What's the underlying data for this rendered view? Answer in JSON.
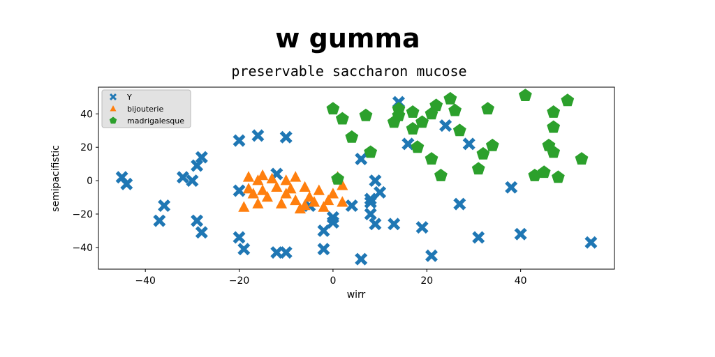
{
  "chart_data": {
    "type": "scatter",
    "title": "w gumma",
    "subtitle": "preservable saccharon mucose",
    "xlabel": "wirr",
    "ylabel": "semipacifistic",
    "xlim": [
      -50,
      60
    ],
    "ylim": [
      -53,
      56
    ],
    "xticks": [
      -40,
      -20,
      0,
      20,
      40
    ],
    "yticks": [
      -40,
      -20,
      0,
      20,
      40
    ],
    "tick_labels_x": [
      "−40",
      "−20",
      "0",
      "20",
      "40"
    ],
    "tick_labels_y": [
      "−40",
      "−20",
      "0",
      "20",
      "40"
    ],
    "grid": false,
    "legend_position": "top-left",
    "series": [
      {
        "name": "Y",
        "color": "#1f77b4",
        "marker": "x",
        "points": [
          [
            -45,
            2
          ],
          [
            -44,
            -2
          ],
          [
            -36,
            -15
          ],
          [
            -37,
            -24
          ],
          [
            -32,
            2
          ],
          [
            -30,
            0
          ],
          [
            -29,
            9
          ],
          [
            -28,
            14
          ],
          [
            -29,
            -24
          ],
          [
            -28,
            -31
          ],
          [
            -20,
            24
          ],
          [
            -16,
            27
          ],
          [
            -10,
            26
          ],
          [
            -20,
            -6
          ],
          [
            -20,
            -34
          ],
          [
            -19,
            -41
          ],
          [
            -12,
            4
          ],
          [
            -12,
            -43
          ],
          [
            -10,
            -43
          ],
          [
            -5,
            -15
          ],
          [
            -2,
            -30
          ],
          [
            -2,
            -41
          ],
          [
            0,
            -25
          ],
          [
            0,
            -22
          ],
          [
            4,
            -15
          ],
          [
            6,
            13
          ],
          [
            6,
            -47
          ],
          [
            8,
            -20
          ],
          [
            8,
            -13
          ],
          [
            8,
            -11
          ],
          [
            9,
            -26
          ],
          [
            9,
            0
          ],
          [
            10,
            -7
          ],
          [
            13,
            -26
          ],
          [
            14,
            47
          ],
          [
            16,
            22
          ],
          [
            19,
            -28
          ],
          [
            21,
            -45
          ],
          [
            24,
            33
          ],
          [
            27,
            -14
          ],
          [
            29,
            22
          ],
          [
            31,
            -34
          ],
          [
            38,
            -4
          ],
          [
            40,
            -32
          ],
          [
            55,
            -37
          ]
        ]
      },
      {
        "name": "bijouterie",
        "color": "#ff7f0e",
        "marker": "^",
        "points": [
          [
            -19,
            -16
          ],
          [
            -18,
            2
          ],
          [
            -18,
            -5
          ],
          [
            -17,
            -8
          ],
          [
            -16,
            0
          ],
          [
            -16,
            -14
          ],
          [
            -15,
            3
          ],
          [
            -15,
            -6
          ],
          [
            -14,
            -10
          ],
          [
            -13,
            1
          ],
          [
            -12,
            -4
          ],
          [
            -11,
            -14
          ],
          [
            -10,
            0
          ],
          [
            -10,
            -8
          ],
          [
            -9,
            -5
          ],
          [
            -8,
            2
          ],
          [
            -8,
            -12
          ],
          [
            -7,
            -17
          ],
          [
            -6,
            -15
          ],
          [
            -6,
            -4
          ],
          [
            -5,
            -10
          ],
          [
            -4,
            -13
          ],
          [
            -3,
            -6
          ],
          [
            -2,
            -16
          ],
          [
            -1,
            -12
          ],
          [
            0,
            -8
          ],
          [
            1,
            2
          ],
          [
            2,
            -3
          ],
          [
            2,
            -13
          ]
        ]
      },
      {
        "name": "madrigalesque",
        "color": "#2ca02c",
        "marker": "pentagon",
        "points": [
          [
            0,
            43
          ],
          [
            1,
            1
          ],
          [
            2,
            37
          ],
          [
            4,
            26
          ],
          [
            7,
            39
          ],
          [
            8,
            17
          ],
          [
            13,
            35
          ],
          [
            14,
            43
          ],
          [
            14,
            39
          ],
          [
            17,
            41
          ],
          [
            17,
            31
          ],
          [
            18,
            20
          ],
          [
            19,
            35
          ],
          [
            21,
            40
          ],
          [
            21,
            13
          ],
          [
            22,
            45
          ],
          [
            23,
            3
          ],
          [
            25,
            49
          ],
          [
            26,
            42
          ],
          [
            27,
            30
          ],
          [
            31,
            7
          ],
          [
            32,
            16
          ],
          [
            33,
            43
          ],
          [
            34,
            21
          ],
          [
            41,
            51
          ],
          [
            43,
            3
          ],
          [
            45,
            5
          ],
          [
            46,
            21
          ],
          [
            47,
            41
          ],
          [
            47,
            32
          ],
          [
            47,
            17
          ],
          [
            48,
            2
          ],
          [
            50,
            48
          ],
          [
            53,
            13
          ]
        ]
      }
    ]
  }
}
